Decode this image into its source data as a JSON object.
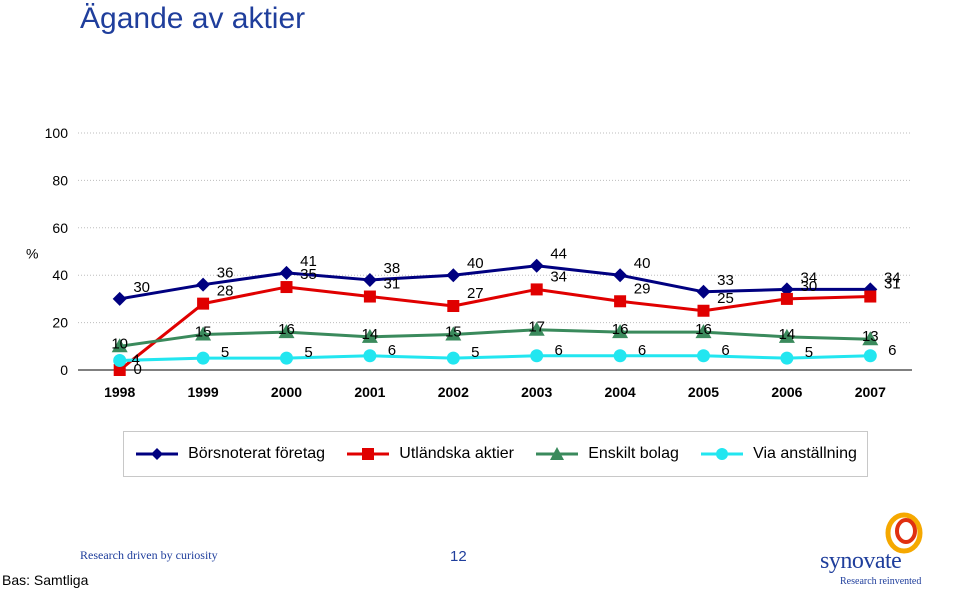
{
  "page": {
    "title": "Ägande av aktier",
    "footer_tagline": "Research driven by curiosity",
    "page_number": "12",
    "base_note": "Bas: Samtliga",
    "brand_name": "synovate",
    "brand_tagline": "Research reinvented"
  },
  "chart_data": {
    "type": "line",
    "title": "",
    "xlabel": "",
    "ylabel": "%",
    "ylim": [
      0,
      100
    ],
    "yticks": [
      0,
      20,
      40,
      60,
      80,
      100
    ],
    "grid": true,
    "legend_position": "bottom",
    "categories": [
      "1998",
      "1999",
      "2000",
      "2001",
      "2002",
      "2003",
      "2004",
      "2005",
      "2006",
      "2007"
    ],
    "series": [
      {
        "name": "Börsnoterat företag",
        "color": "#000080",
        "marker": "diamond",
        "values": [
          30,
          36,
          41,
          38,
          40,
          44,
          40,
          33,
          34,
          34
        ]
      },
      {
        "name": "Utländska aktier",
        "color": "#e00000",
        "marker": "square",
        "values": [
          0,
          28,
          35,
          31,
          27,
          34,
          29,
          25,
          30,
          31
        ]
      },
      {
        "name": "Enskilt bolag",
        "color": "#3a8a5c",
        "marker": "triangle",
        "values": [
          10,
          15,
          16,
          14,
          15,
          17,
          16,
          16,
          14,
          13
        ]
      },
      {
        "name": "Via anställning",
        "color": "#22e6f0",
        "marker": "circle",
        "values": [
          4,
          5,
          5,
          6,
          5,
          6,
          6,
          6,
          5,
          6
        ]
      }
    ]
  }
}
